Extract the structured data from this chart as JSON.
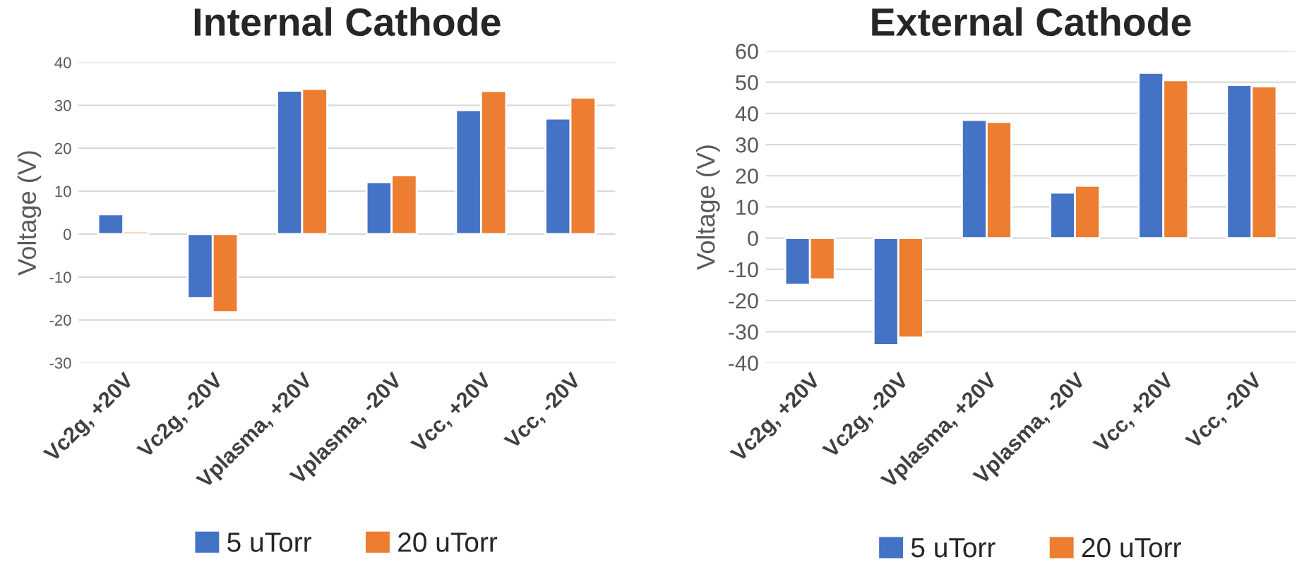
{
  "chart_data": [
    {
      "type": "bar",
      "title": "Internal Cathode",
      "ylabel": "Voltage (V)",
      "categories": [
        "Vc2g, +20V",
        "Vc2g, -20V",
        "Vplasma, +20V",
        "Vplasma, -20V",
        "Vcc, +20V",
        "Vcc, -20V"
      ],
      "series": [
        {
          "name": "5 uTorr",
          "color": "#4472c4",
          "values": [
            4.6,
            -14.9,
            33.4,
            12.1,
            28.9,
            26.9
          ]
        },
        {
          "name": "20 uTorr",
          "color": "#ed7d31",
          "values": [
            0.6,
            -18.2,
            33.8,
            13.7,
            33.3,
            31.8
          ]
        }
      ],
      "ylim": [
        -30,
        40
      ],
      "yticks": [
        -30,
        -20,
        -10,
        0,
        10,
        20,
        30,
        40
      ],
      "grid": "y",
      "legend": "bottom"
    },
    {
      "type": "bar",
      "title": "External Cathode",
      "ylabel": "Voltage (V)",
      "categories": [
        "Vc2g, +20V",
        "Vc2g, -20V",
        "Vplasma, +20V",
        "Vplasma, -20V",
        "Vcc, +20V",
        "Vcc, -20V"
      ],
      "series": [
        {
          "name": "5 uTorr",
          "color": "#4472c4",
          "values": [
            -15.0,
            -34.3,
            37.9,
            14.6,
            53.0,
            49.1
          ]
        },
        {
          "name": "20 uTorr",
          "color": "#ed7d31",
          "values": [
            -13.2,
            -31.9,
            37.3,
            16.8,
            50.6,
            48.7
          ]
        }
      ],
      "ylim": [
        -40,
        60
      ],
      "yticks": [
        -40,
        -30,
        -20,
        -10,
        0,
        10,
        20,
        30,
        40,
        50,
        60
      ],
      "grid": "y",
      "legend": "bottom"
    }
  ]
}
